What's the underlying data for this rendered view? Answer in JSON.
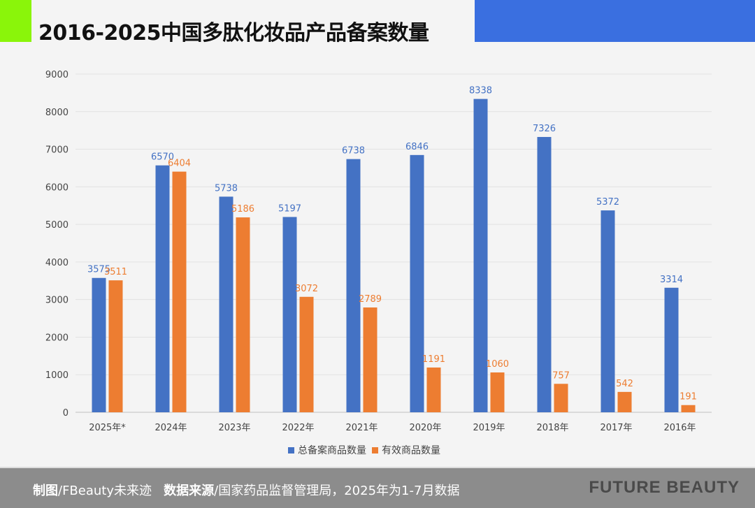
{
  "header": {
    "title": "2016-2025中国多肽化妆品产品备案数量",
    "accent_green": "#8af50a",
    "accent_blue": "#3a6fe0"
  },
  "chart_data": {
    "type": "bar",
    "categories": [
      "2025年*",
      "2024年",
      "2023年",
      "2022年",
      "2021年",
      "2020年",
      "2019年",
      "2018年",
      "2017年",
      "2016年"
    ],
    "series": [
      {
        "name": "总备案商品数量",
        "color": "#4472c4",
        "values": [
          3575,
          6570,
          5738,
          5197,
          6738,
          6846,
          8338,
          7326,
          5372,
          3314
        ]
      },
      {
        "name": "有效商品数量",
        "color": "#ed7d31",
        "values": [
          3511,
          6404,
          5186,
          3072,
          2789,
          1191,
          1060,
          757,
          542,
          191
        ]
      }
    ],
    "ylim": [
      0,
      9000
    ],
    "yticks": [
      0,
      1000,
      2000,
      3000,
      4000,
      5000,
      6000,
      7000,
      8000,
      9000
    ],
    "grid": true,
    "legend": "bottom"
  },
  "footer": {
    "maker_label": "制图",
    "maker": "/FBeauty未来迹",
    "source_label": "数据来源",
    "source": "/国家药品监督管理局，2025年为1-7月数据",
    "brand": "FUTURE BEAUTY"
  }
}
